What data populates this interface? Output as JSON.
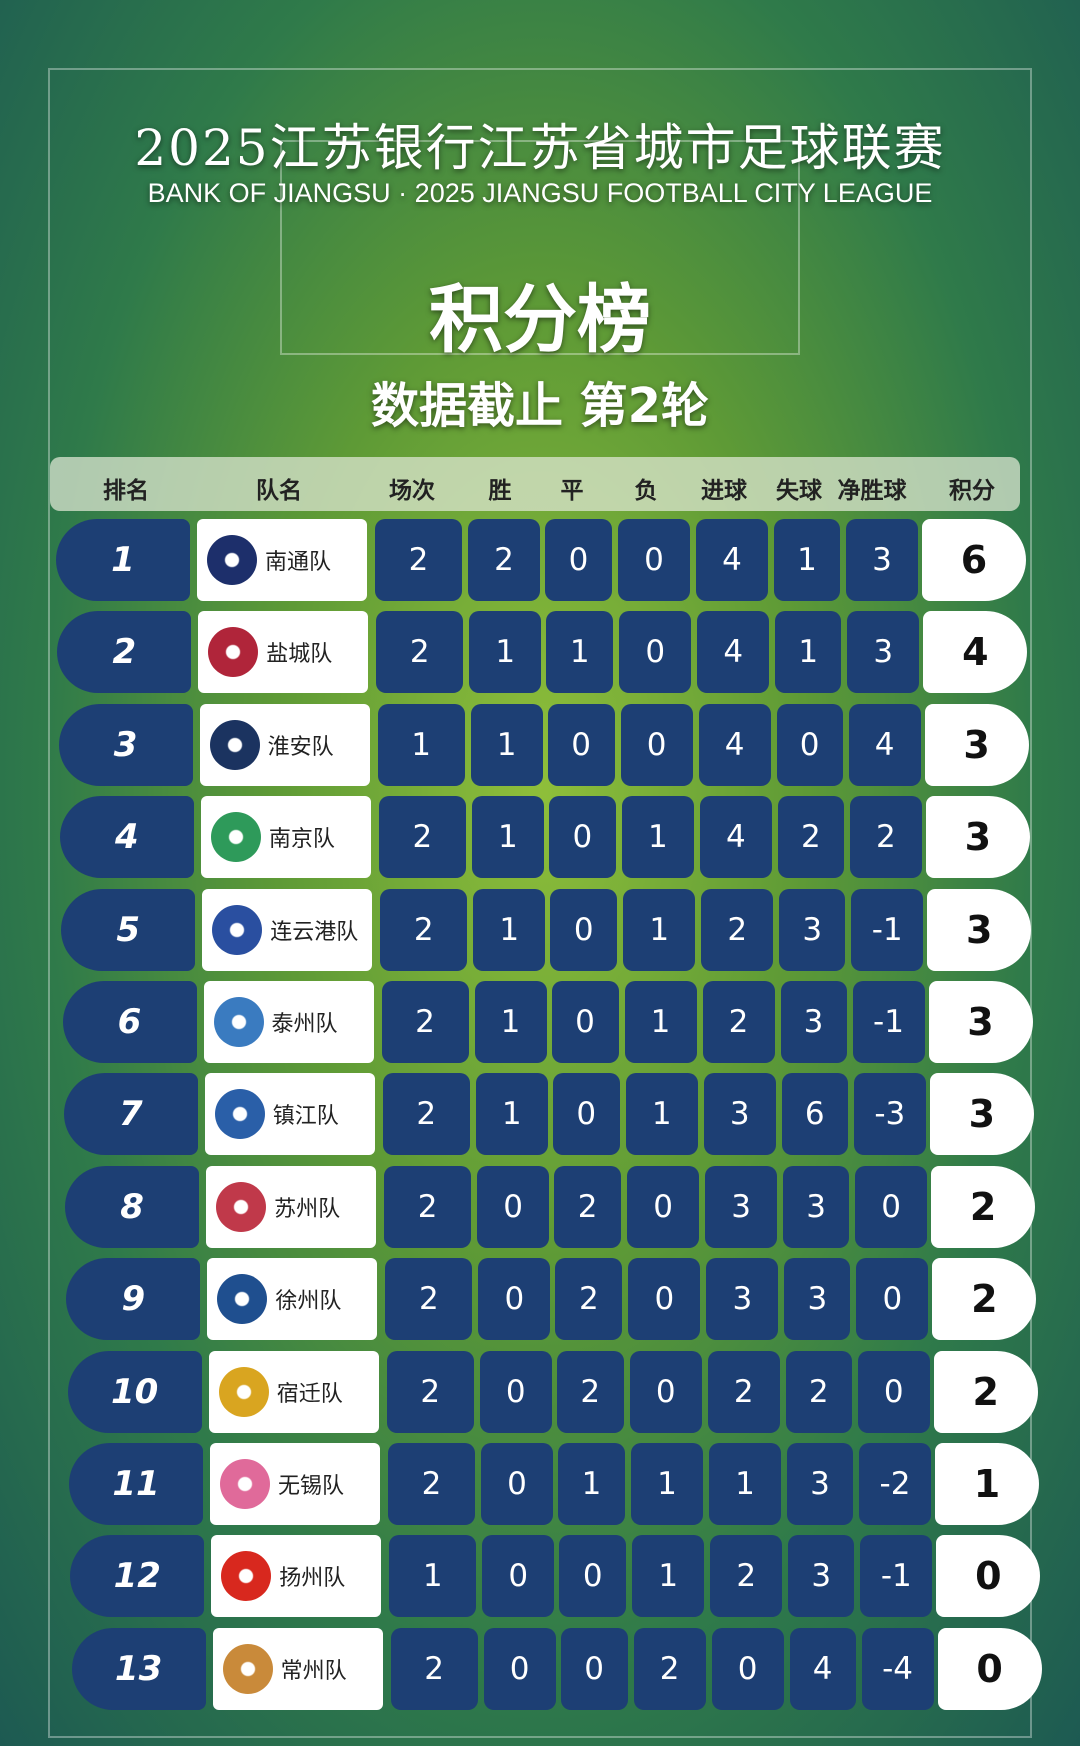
{
  "title": "2025江苏银行江苏省城市足球联赛",
  "subtitle": "BANK OF JIANGSU · 2025 JIANGSU FOOTBALL CITY LEAGUE",
  "heading": "积分榜",
  "round_note": "数据截止 第2轮",
  "columns": [
    "排名",
    "队名",
    "场次",
    "胜",
    "平",
    "负",
    "进球",
    "失球",
    "净胜球",
    "积分"
  ],
  "rows": [
    {
      "rank": "1",
      "team": "南通队",
      "logo_color": "#1d2f6b",
      "played": "2",
      "w": "2",
      "d": "0",
      "l": "0",
      "gf": "4",
      "ga": "1",
      "gd": "3",
      "pts": "6"
    },
    {
      "rank": "2",
      "team": "盐城队",
      "logo_color": "#b0253a",
      "played": "2",
      "w": "1",
      "d": "1",
      "l": "0",
      "gf": "4",
      "ga": "1",
      "gd": "3",
      "pts": "4"
    },
    {
      "rank": "3",
      "team": "淮安队",
      "logo_color": "#1b3360",
      "played": "1",
      "w": "1",
      "d": "0",
      "l": "0",
      "gf": "4",
      "ga": "0",
      "gd": "4",
      "pts": "3"
    },
    {
      "rank": "4",
      "team": "南京队",
      "logo_color": "#2e9a5a",
      "played": "2",
      "w": "1",
      "d": "0",
      "l": "1",
      "gf": "4",
      "ga": "2",
      "gd": "2",
      "pts": "3"
    },
    {
      "rank": "5",
      "team": "连云港队",
      "logo_color": "#2a4fa0",
      "played": "2",
      "w": "1",
      "d": "0",
      "l": "1",
      "gf": "2",
      "ga": "3",
      "gd": "-1",
      "pts": "3"
    },
    {
      "rank": "6",
      "team": "泰州队",
      "logo_color": "#3a7bc0",
      "played": "2",
      "w": "1",
      "d": "0",
      "l": "1",
      "gf": "2",
      "ga": "3",
      "gd": "-1",
      "pts": "3"
    },
    {
      "rank": "7",
      "team": "镇江队",
      "logo_color": "#2a5fa8",
      "played": "2",
      "w": "1",
      "d": "0",
      "l": "1",
      "gf": "3",
      "ga": "6",
      "gd": "-3",
      "pts": "3"
    },
    {
      "rank": "8",
      "team": "苏州队",
      "logo_color": "#c0394a",
      "played": "2",
      "w": "0",
      "d": "2",
      "l": "0",
      "gf": "3",
      "ga": "3",
      "gd": "0",
      "pts": "2"
    },
    {
      "rank": "9",
      "team": "徐州队",
      "logo_color": "#1f4f8f",
      "played": "2",
      "w": "0",
      "d": "2",
      "l": "0",
      "gf": "3",
      "ga": "3",
      "gd": "0",
      "pts": "2"
    },
    {
      "rank": "10",
      "team": "宿迁队",
      "logo_color": "#d9a520",
      "played": "2",
      "w": "0",
      "d": "2",
      "l": "0",
      "gf": "2",
      "ga": "2",
      "gd": "0",
      "pts": "2"
    },
    {
      "rank": "11",
      "team": "无锡队",
      "logo_color": "#e06a9a",
      "played": "2",
      "w": "0",
      "d": "1",
      "l": "1",
      "gf": "1",
      "ga": "3",
      "gd": "-2",
      "pts": "1"
    },
    {
      "rank": "12",
      "team": "扬州队",
      "logo_color": "#d8281e",
      "played": "1",
      "w": "0",
      "d": "0",
      "l": "1",
      "gf": "2",
      "ga": "3",
      "gd": "-1",
      "pts": "0"
    },
    {
      "rank": "13",
      "team": "常州队",
      "logo_color": "#c98a3a",
      "played": "2",
      "w": "0",
      "d": "0",
      "l": "2",
      "gf": "0",
      "ga": "4",
      "gd": "-4",
      "pts": "0"
    }
  ]
}
